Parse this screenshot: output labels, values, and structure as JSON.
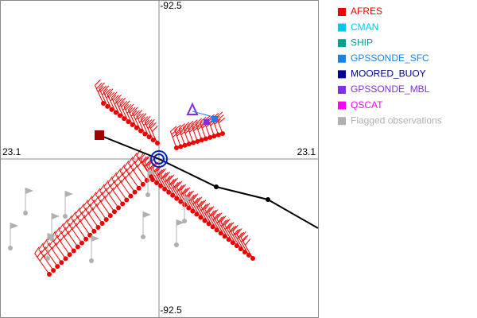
{
  "axis_labels": {
    "top": "-92.5",
    "bottom": "-92.5",
    "left": "23.1",
    "right": "23.1"
  },
  "legend": [
    {
      "label": "AFRES",
      "color": "#ee0000"
    },
    {
      "label": "CMAN",
      "color": "#00c8e8"
    },
    {
      "label": "SHIP",
      "color": "#00a090"
    },
    {
      "label": "GPSSONDE_SFC",
      "color": "#2080e0"
    },
    {
      "label": "MOORED_BUOY",
      "color": "#000090"
    },
    {
      "label": "GPSSONDE_MBL",
      "color": "#8030e0"
    },
    {
      "label": "QSCAT",
      "color": "#ff00ff"
    },
    {
      "label": "Flagged observations",
      "color": "#b0b0b0"
    }
  ]
}
